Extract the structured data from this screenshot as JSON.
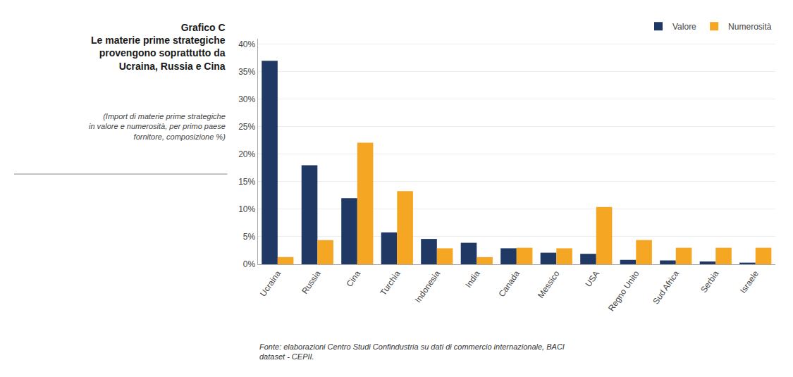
{
  "chart_data": {
    "type": "bar",
    "title": "Grafico C\nLe materie prime strategiche\nprovengono soprattutto da\nUcraina, Russia e Cina",
    "subtitle": "(Import di materie prime strategiche\nin valore e numerosità, per primo paese\nfornitore, composizione %)",
    "annotations": [
      "Fonte: elaborazioni Centro Studi Confindustria su dati di commercio internazionale, BACI\ndataset - CEPII."
    ],
    "categories": [
      "Ucraina",
      "Russia",
      "Cina",
      "Turchia",
      "Indonesia",
      "India",
      "Canada",
      "Messico",
      "USA",
      "Regno Unito",
      "Sud Africa",
      "Serbia",
      "Israele"
    ],
    "series": [
      {
        "name": "Valore",
        "color": "#1F3864",
        "values": [
          0.37,
          0.18,
          0.12,
          0.058,
          0.046,
          0.039,
          0.029,
          0.021,
          0.019,
          0.008,
          0.007,
          0.005,
          0.003
        ]
      },
      {
        "name": "Numerosità",
        "color": "#F5A623",
        "values": [
          0.013,
          0.044,
          0.221,
          0.133,
          0.029,
          0.013,
          0.03,
          0.029,
          0.104,
          0.044,
          0.03,
          0.03,
          0.03
        ]
      }
    ],
    "ylim": [
      0,
      0.41
    ],
    "yticks": [
      {
        "value": 0,
        "label": "0%"
      },
      {
        "value": 0.05,
        "label": "5%"
      },
      {
        "value": 0.1,
        "label": "10%"
      },
      {
        "value": 0.15,
        "label": "15%"
      },
      {
        "value": 0.2,
        "label": "20%"
      },
      {
        "value": 0.25,
        "label": "25%"
      },
      {
        "value": 0.3,
        "label": "30%"
      },
      {
        "value": 0.35,
        "label": "35%"
      },
      {
        "value": 0.4,
        "label": "40%"
      }
    ],
    "grid": true,
    "legend": "upper right"
  }
}
